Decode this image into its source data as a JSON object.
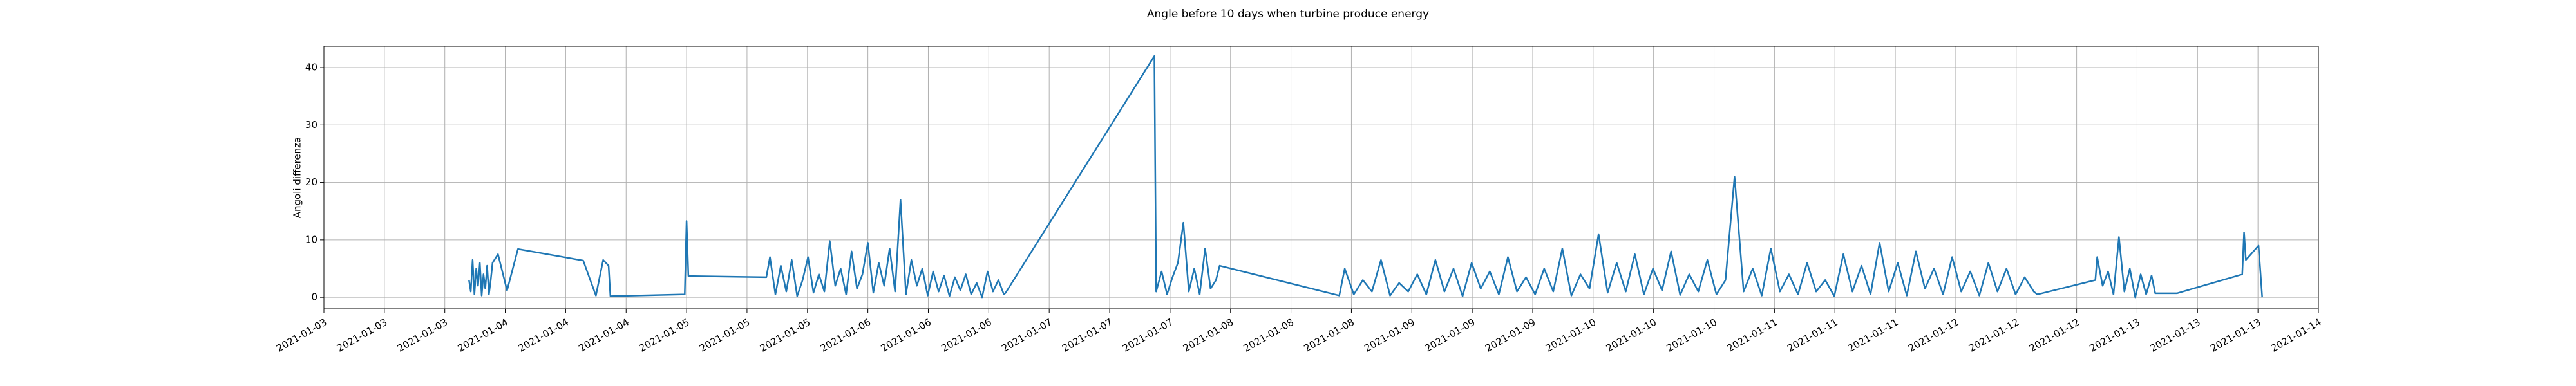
{
  "chart_data": {
    "type": "line",
    "title": "Angle before 10 days when turbine produce energy",
    "y_label": "Angoli differenza",
    "grid": true,
    "xlim": [
      3,
      14
    ],
    "ylim": [
      -2,
      43.7
    ],
    "yticks": [
      0,
      10,
      20,
      30,
      40
    ],
    "xticks": [
      {
        "value": 3,
        "label": "2021-01-03"
      },
      {
        "value": 3.3333,
        "label": "2021-01-03"
      },
      {
        "value": 3.6667,
        "label": "2021-01-03"
      },
      {
        "value": 4,
        "label": "2021-01-04"
      },
      {
        "value": 4.3333,
        "label": "2021-01-04"
      },
      {
        "value": 4.6667,
        "label": "2021-01-04"
      },
      {
        "value": 5,
        "label": "2021-01-05"
      },
      {
        "value": 5.3333,
        "label": "2021-01-05"
      },
      {
        "value": 5.6667,
        "label": "2021-01-05"
      },
      {
        "value": 6,
        "label": "2021-01-06"
      },
      {
        "value": 6.3333,
        "label": "2021-01-06"
      },
      {
        "value": 6.6667,
        "label": "2021-01-06"
      },
      {
        "value": 7,
        "label": "2021-01-07"
      },
      {
        "value": 7.3333,
        "label": "2021-01-07"
      },
      {
        "value": 7.6667,
        "label": "2021-01-07"
      },
      {
        "value": 8,
        "label": "2021-01-08"
      },
      {
        "value": 8.3333,
        "label": "2021-01-08"
      },
      {
        "value": 8.6667,
        "label": "2021-01-08"
      },
      {
        "value": 9,
        "label": "2021-01-09"
      },
      {
        "value": 9.3333,
        "label": "2021-01-09"
      },
      {
        "value": 9.6667,
        "label": "2021-01-09"
      },
      {
        "value": 10,
        "label": "2021-01-10"
      },
      {
        "value": 10.3333,
        "label": "2021-01-10"
      },
      {
        "value": 10.6667,
        "label": "2021-01-10"
      },
      {
        "value": 11,
        "label": "2021-01-11"
      },
      {
        "value": 11.3333,
        "label": "2021-01-11"
      },
      {
        "value": 11.6667,
        "label": "2021-01-11"
      },
      {
        "value": 12,
        "label": "2021-01-12"
      },
      {
        "value": 12.3333,
        "label": "2021-01-12"
      },
      {
        "value": 12.6667,
        "label": "2021-01-12"
      },
      {
        "value": 13,
        "label": "2021-01-13"
      },
      {
        "value": 13.3333,
        "label": "2021-01-13"
      },
      {
        "value": 13.6667,
        "label": "2021-01-13"
      },
      {
        "value": 14,
        "label": "2021-01-14"
      }
    ],
    "color": "#1f77b4",
    "x": [
      3.8,
      3.81,
      3.82,
      3.83,
      3.84,
      3.85,
      3.86,
      3.87,
      3.88,
      3.89,
      3.9,
      3.91,
      3.92,
      3.93,
      3.96,
      4.01,
      4.07,
      4.43,
      4.5,
      4.54,
      4.57,
      4.58,
      4.99,
      5.0,
      5.01,
      5.44,
      5.46,
      5.49,
      5.52,
      5.55,
      5.58,
      5.61,
      5.64,
      5.67,
      5.7,
      5.73,
      5.76,
      5.79,
      5.82,
      5.85,
      5.88,
      5.91,
      5.94,
      5.97,
      6.0,
      6.03,
      6.06,
      6.09,
      6.12,
      6.15,
      6.18,
      6.21,
      6.24,
      6.27,
      6.3,
      6.33,
      6.36,
      6.39,
      6.42,
      6.45,
      6.48,
      6.51,
      6.54,
      6.57,
      6.6,
      6.63,
      6.66,
      6.69,
      6.72,
      6.75,
      6.76,
      7.58,
      7.59,
      7.62,
      7.65,
      7.68,
      7.71,
      7.74,
      7.77,
      7.8,
      7.83,
      7.86,
      7.89,
      7.92,
      7.94,
      8.6,
      8.63,
      8.68,
      8.73,
      8.78,
      8.83,
      8.88,
      8.93,
      8.98,
      9.03,
      9.08,
      9.13,
      9.18,
      9.23,
      9.28,
      9.33,
      9.38,
      9.43,
      9.48,
      9.53,
      9.58,
      9.63,
      9.68,
      9.73,
      9.78,
      9.83,
      9.88,
      9.93,
      9.98,
      10.03,
      10.08,
      10.13,
      10.18,
      10.23,
      10.28,
      10.33,
      10.38,
      10.43,
      10.48,
      10.53,
      10.58,
      10.63,
      10.68,
      10.73,
      10.78,
      10.83,
      10.88,
      10.93,
      10.98,
      11.03,
      11.08,
      11.13,
      11.18,
      11.23,
      11.28,
      11.33,
      11.38,
      11.43,
      11.48,
      11.53,
      11.58,
      11.63,
      11.68,
      11.73,
      11.78,
      11.83,
      11.88,
      11.93,
      11.98,
      12.03,
      12.08,
      12.13,
      12.18,
      12.23,
      12.28,
      12.33,
      12.38,
      12.43,
      12.45,
      12.77,
      12.78,
      12.81,
      12.84,
      12.87,
      12.9,
      12.93,
      12.96,
      12.99,
      13.02,
      13.05,
      13.08,
      13.1,
      13.22,
      13.58,
      13.59,
      13.6,
      13.67,
      13.69
    ],
    "values": [
      3,
      1,
      6.5,
      0.5,
      5,
      2,
      6,
      0.3,
      4,
      1.5,
      5.5,
      0.5,
      3,
      6,
      7.5,
      1.2,
      8.4,
      6.4,
      0.3,
      6.5,
      5.5,
      0.2,
      0.5,
      13.3,
      3.7,
      3.5,
      7,
      0.5,
      5.5,
      1,
      6.5,
      0.2,
      3,
      7,
      0.8,
      4,
      1,
      9.8,
      2,
      5,
      0.5,
      8,
      1.5,
      4,
      9.5,
      0.8,
      6,
      2,
      8.5,
      1,
      17,
      0.5,
      6.5,
      2,
      5,
      0.3,
      4.5,
      1,
      3.8,
      0.2,
      3.5,
      1.2,
      4,
      0.5,
      2.5,
      0,
      4.5,
      1,
      3,
      0.5,
      0.8,
      42,
      1,
      4.5,
      0.5,
      3.5,
      6,
      13,
      1,
      5,
      0.5,
      8.5,
      1.5,
      3,
      5.5,
      0.3,
      5,
      0.5,
      3,
      1,
      6.5,
      0.3,
      2.5,
      1,
      4,
      0.5,
      6.5,
      1,
      5,
      0.2,
      6,
      1.5,
      4.5,
      0.5,
      7,
      1,
      3.5,
      0.5,
      5,
      1,
      8.5,
      0.3,
      4,
      1.5,
      11,
      0.8,
      6,
      1,
      7.5,
      0.5,
      5,
      1.2,
      8,
      0.4,
      4,
      1,
      6.5,
      0.5,
      3,
      21,
      1,
      5,
      0.3,
      8.5,
      1,
      4,
      0.5,
      6,
      1,
      3,
      0.2,
      7.5,
      1,
      5.5,
      0.5,
      9.5,
      1,
      6,
      0.3,
      8,
      1.5,
      5,
      0.5,
      7,
      1,
      4.5,
      0.3,
      6,
      1,
      5,
      0.5,
      3.5,
      1,
      0.5,
      3,
      7,
      2,
      4.5,
      0.5,
      10.5,
      1,
      5,
      0,
      4,
      0.5,
      3.8,
      0.7,
      0.7,
      4,
      11.3,
      6.5,
      9,
      0
    ]
  }
}
